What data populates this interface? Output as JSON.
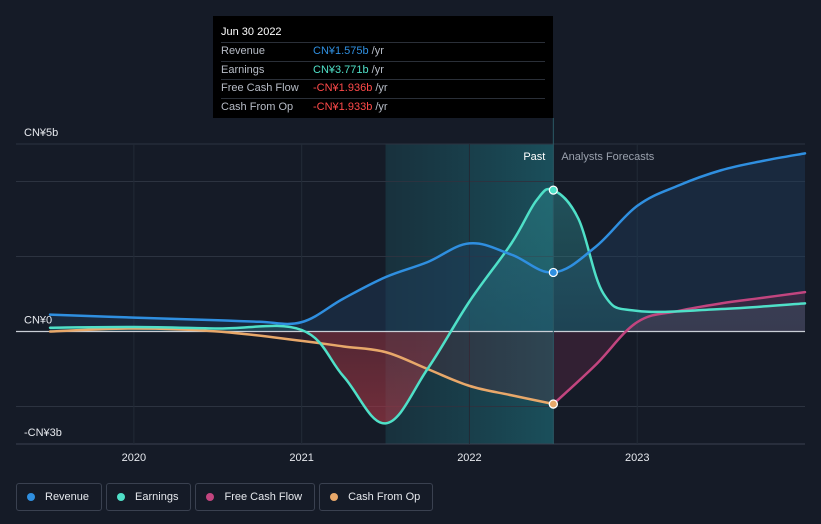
{
  "chart_data": {
    "type": "line",
    "title": "",
    "currency_unit": "CN¥ billions",
    "x_range": [
      2019.5,
      2024.0
    ],
    "y_range": [
      -3.0,
      5.0
    ],
    "y_axis_labels": [
      {
        "label": "CN¥5b",
        "value": 5
      },
      {
        "label": "CN¥0",
        "value": 0
      },
      {
        "label": "-CN¥3b",
        "value": -3
      }
    ],
    "gridlines": [
      5,
      4,
      2,
      0,
      -2
    ],
    "x_ticks": [
      {
        "label": "2020",
        "value": 2020.0
      },
      {
        "label": "2021",
        "value": 2021.0
      },
      {
        "label": "2022",
        "value": 2022.0
      },
      {
        "label": "2023",
        "value": 2023.0
      }
    ],
    "past_label": "Past",
    "forecast_label": "Analysts Forecasts",
    "past_highlight_start": 2021.5,
    "past_end": 2022.5,
    "series": [
      {
        "name": "Revenue",
        "color": "#2f8fe0",
        "x": [
          2019.5,
          2020.0,
          2020.5,
          2020.75,
          2021.0,
          2021.25,
          2021.5,
          2021.75,
          2022.0,
          2022.25,
          2022.5,
          2022.75,
          2023.0,
          2023.25,
          2023.5,
          2023.75,
          2024.0
        ],
        "values": [
          0.45,
          0.37,
          0.3,
          0.26,
          0.25,
          0.88,
          1.45,
          1.85,
          2.35,
          2.05,
          1.575,
          2.25,
          3.35,
          3.9,
          4.3,
          4.55,
          4.75
        ]
      },
      {
        "name": "Earnings",
        "color": "#4fe0c8",
        "x": [
          2019.5,
          2020.0,
          2020.5,
          2021.0,
          2021.25,
          2021.5,
          2021.75,
          2022.0,
          2022.25,
          2022.4,
          2022.5,
          2022.65,
          2022.8,
          2023.0,
          2023.5,
          2024.0
        ],
        "values": [
          0.1,
          0.12,
          0.08,
          0.04,
          -1.2,
          -2.45,
          -1.0,
          0.8,
          2.35,
          3.5,
          3.771,
          3.0,
          1.0,
          0.55,
          0.6,
          0.75
        ]
      },
      {
        "name": "Free Cash Flow",
        "color": "#c2457f",
        "x": [
          2022.5,
          2022.75,
          2023.0,
          2023.25,
          2023.5,
          2023.75,
          2024.0
        ],
        "values": [
          -1.936,
          -0.9,
          0.25,
          0.55,
          0.75,
          0.9,
          1.05
        ]
      },
      {
        "name": "Cash From Op",
        "color": "#e8a86a",
        "x": [
          2019.5,
          2020.0,
          2020.5,
          2021.0,
          2021.25,
          2021.5,
          2021.75,
          2022.0,
          2022.25,
          2022.5
        ],
        "values": [
          0.0,
          0.08,
          0.0,
          -0.25,
          -0.4,
          -0.55,
          -1.0,
          -1.45,
          -1.7,
          -1.933
        ]
      }
    ]
  },
  "tooltip": {
    "date": "Jun 30 2022",
    "rows": [
      {
        "name": "Revenue",
        "value": "CN¥1.575b",
        "unit": "/yr",
        "color": "#2f8fe0"
      },
      {
        "name": "Earnings",
        "value": "CN¥3.771b",
        "unit": "/yr",
        "color": "#4fe0c8"
      },
      {
        "name": "Free Cash Flow",
        "value": "-CN¥1.936b",
        "unit": "/yr",
        "color": "#ff4a4a"
      },
      {
        "name": "Cash From Op",
        "value": "-CN¥1.933b",
        "unit": "/yr",
        "color": "#ff4a4a"
      }
    ]
  },
  "legend": [
    {
      "label": "Revenue",
      "color": "#2f8fe0"
    },
    {
      "label": "Earnings",
      "color": "#4fe0c8"
    },
    {
      "label": "Free Cash Flow",
      "color": "#c2457f"
    },
    {
      "label": "Cash From Op",
      "color": "#e8a86a"
    }
  ]
}
